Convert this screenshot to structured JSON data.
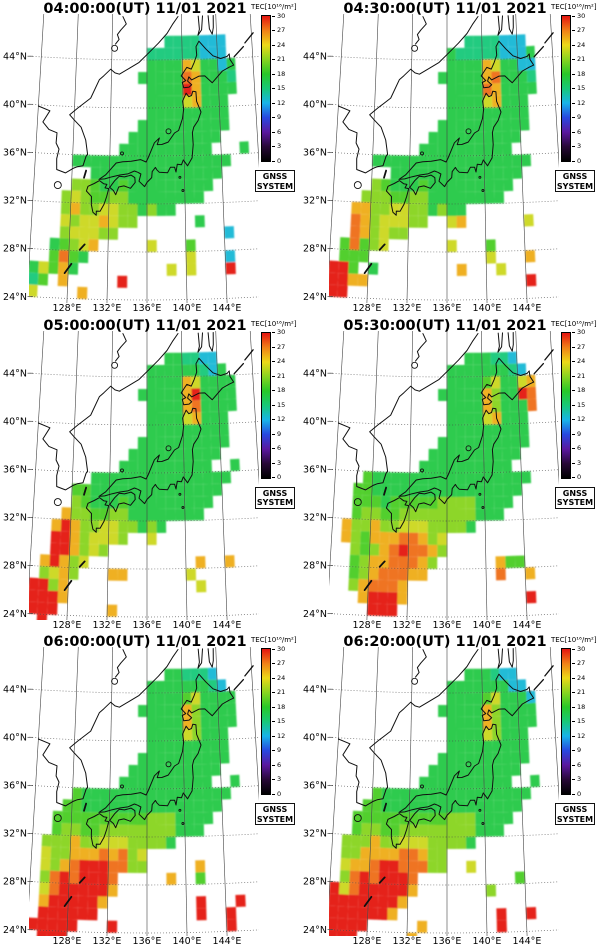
{
  "colorbar": {
    "label": "TEC[10¹⁶/m²]",
    "min": 0,
    "max": 30,
    "ticks": [
      30,
      27,
      24,
      21,
      18,
      15,
      12,
      9,
      6,
      3,
      0
    ]
  },
  "gnss_box": {
    "line1": "GNSS",
    "line2": "SYSTEM"
  },
  "axes": {
    "lat_ticks": [
      {
        "value": 44,
        "label": "44°N"
      },
      {
        "value": 40,
        "label": "40°N"
      },
      {
        "value": 36,
        "label": "36°N"
      },
      {
        "value": 32,
        "label": "32°N"
      },
      {
        "value": 28,
        "label": "28°N"
      },
      {
        "value": 24,
        "label": "24°N"
      }
    ],
    "lon_ticks": [
      {
        "value": 128,
        "label": "128°E"
      },
      {
        "value": 132,
        "label": "132°E"
      },
      {
        "value": 136,
        "label": "136°E"
      },
      {
        "value": 140,
        "label": "140°E"
      },
      {
        "value": 144,
        "label": "144°E"
      }
    ]
  },
  "chart_data": {
    "type": "heatmap",
    "value_units": "TEC, 10¹⁶ electrons per m²",
    "colormap": {
      "values": [
        0,
        3,
        6,
        9,
        12,
        15,
        18,
        21,
        24,
        27,
        30
      ],
      "colors": [
        "#000000",
        "#280838",
        "#5a18a0",
        "#2848e0",
        "#18b4e8",
        "#18c878",
        "#28c828",
        "#88d420",
        "#ecd818",
        "#f08018",
        "#e41410"
      ]
    },
    "grid_spec": {
      "lon_min": 124,
      "lat_max": 46,
      "dlon": 1,
      "dlat": 1,
      "cols": 24,
      "rows": 23
    },
    "palette": {
      "c": 12.5,
      "t": 15,
      "G": 17,
      "g": 19,
      "y": 21,
      "Y": 23,
      "o": 25.5,
      "O": 27.5,
      "R": 30
    },
    "panels": [
      {
        "title": "04:00:00(UT) 11/01 2021",
        "grid": [
          "..............ttttccc...",
          "............ttttttccc...",
          "............GGGGoYGGcG..",
          "...........GGGGGOoGGGt..",
          "............GGGGRoGGGG..",
          "............GGGGYoGGG...",
          "............GGGGGGGGG...",
          "...........GGGGGGGGGG...",
          "..........GGGGGGGGGG....",
          ".........GGGGGGGGGG...G.",
          "....GGGGGGGGGGGGGGGGG...",
          "......GGGGGGGGGGGGGG....",
          "....yygGGgGGGGGGGGG.....",
          "...yYyggyyGGGGGGGG......",
          "...yoyyYYyyGyGG.........",
          "...YyYYoYyy......G......",
          "...yYYYyy...........c...",
          "..GgyYo.....Y...g.......",
          "..gOgG..........Y...c...",
          "GYgoG.........Y.Y...R...",
          "tg.o.....R..............",
          "Y....o..................",
          "........................"
        ]
      },
      {
        "title": "04:30:00(UT) 11/01 2021",
        "grid": [
          "..............ttttccc...",
          "............GtttttcccG..",
          "............GGGGoYGGcc..",
          "...........GGGGGoOGGGt..",
          "............GGGGOoGGGG..",
          "............GGGGYoGGG...",
          "............GGGGGGGGG...",
          "...........GGGGGGGGGG...",
          "..........GGGGGGGGGG....",
          ".........GGGGGGGGGG.....",
          "....GGGGGGGGGGGGGGGGG...",
          "......GGGGGGGGGGGGGG....",
          "....ygGGGgGGGGGGGGG.....",
          "...yyyggyyGGGGGGGG......",
          "..ooyyYYyyGyGG..........",
          "..OoyYYYyy..Yo......Y...",
          "..OoyYyy................",
          ".gOgyY......Y...g.......",
          ".ggg............Y...o...",
          "RRg.G........o...Y......",
          "RRoo................R...",
          "RR......................",
          "........................"
        ]
      },
      {
        "title": "05:00:00(UT) 11/01 2021",
        "grid": [
          "..............GGttcc....",
          "............GGGGGGtcG...",
          "............GGGGoYGGGG..",
          "...........GGGGGoRGGGG..",
          "............GGGGoOGGGG..",
          "............GGGGYoGGG...",
          "............GGGGGGGGG...",
          "...........GGGGGGGGGG...",
          "..........GGGGGGGGGG....",
          ".........GGGGGGGGGG..G..",
          "......GGGGGGGGGGGGGGG...",
          "....ggGGGGGGGGGGGGGG....",
          "....ygGGGgGGGGGGGGG.....",
          "...oyyggyyGGGGGGGG......",
          "..oRoyyYYyyGyG..........",
          "..RRoyYYYy..Y...........",
          "..RRoyYy................",
          ".oRoyY...........o..o...",
          ".yYoy...oo......Y.......",
          "RRyo.............Y......",
          "RRRo....................",
          "RRR.....o...............",
          ".R......................"
        ]
      },
      {
        "title": "05:30:00(UT) 11/01 2021",
        "grid": [
          "..............GGGttc....",
          "............GGGGGGGtc...",
          "............GGGGgYGGYo..",
          "...........GGGGGoyGGRO..",
          "............GGGGoyGGGO..",
          "............GGGGYoGGG...",
          "............GGGGGGGGG...",
          "...........GGGGGGGGGG...",
          "..........GGGGGGGGGG....",
          ".........GGGGGGGGGG.....",
          "...gGGGGGGGGGGGGGGGGG...",
          "..ggGGGGGGGGGGGGGGGG....",
          "..gggGgggggyyyyGGGG.....",
          "..gyyggyyyyyyyyGGG......",
          ".oyyoyyYYYyyyyG.........",
          ".oygoooOOoyY............",
          "..ygyoOROOoy............",
          "..gyooOOOoy......ogg....",
          "..gyoOOOoo.......O..o...",
          "..yoOOOo................",
          "...oRRRo............R...",
          "....RRR.................",
          "........................"
        ]
      },
      {
        "title": "06:00:00(UT) 11/01 2021",
        "grid": [
          "..............GGtttc....",
          "............GGGGGGGtc...",
          "............GGGGgYGGGG..",
          "...........GGGGGoyGGGG..",
          "............GGGGoyGGGG..",
          "............GGGGYyGGG...",
          "............GGGGGGGGG...",
          "...........GGGGGGGGGG...",
          "..........GGGGGGGGGG....",
          ".........GGGGGGGGGG..G..",
          "....gGGGGGGGGGGGGGGGG...",
          "...ggGGGGGGGGGGGGGGG....",
          "..ggggggggggyyyGGGG.....",
          "..gyyggyyyyyyyyGGG......",
          ".yyyoyyYYYyyyyG.........",
          ".YyyoooOoOyY............",
          ".YyoORRROOyy.....o......",
          ".yORORRRO.....o..g......",
          ".YORRRRRo...............",
          ".oRRRRRo.........R...R..",
          ".RRRRRR..........R..R...",
          "RRRRR...R...........R...",
          ".RRR...................."
        ]
      },
      {
        "title": "06:20:00(UT) 11/01 2021",
        "grid": [
          "..............GGGtcc....",
          "............GGGGGGGcc...",
          "............GGGGgYGGGc..",
          "...........GGGGGoyGGGG..",
          "............GGGGoyGGGG..",
          "............GGGGYyGGG...",
          "............GGGGGGGGG...",
          "...........GGGGGGGGGG...",
          "..........GGGGGGGGGG....",
          ".........GGGGGGGGGG..G..",
          "....gGGGGGGGGGGGGGGGG...",
          "...ggGGGGGGGGGGGGGGG....",
          "..ggggggggggyyyGGGG.....",
          "..gyyggyyyyyyyyGGG......",
          ".yyyoyyYYYyyyyG.........",
          ".yyooooOOoyy............",
          ".YooORROOOyy..Y.........",
          ".yORORRRO..........g....",
          "RYORRRRRo.......y.......",
          "RRRRRRRo................",
          "RRRRRRo..........R..R...",
          "RRRR.....o.......R......",
          "RRR.....o..............."
        ]
      }
    ]
  }
}
